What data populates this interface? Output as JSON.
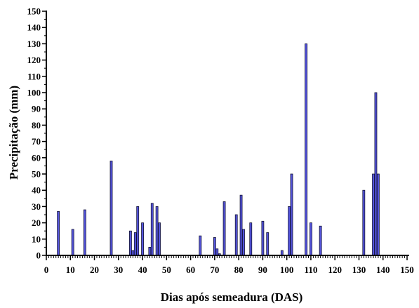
{
  "chart_data": {
    "type": "bar",
    "title": "",
    "xlabel": "Dias após semeadura (DAS)",
    "ylabel": "Precipitação (mm)",
    "xlim": [
      0,
      150
    ],
    "ylim": [
      0,
      150
    ],
    "x_ticks": [
      "0",
      "10",
      "20",
      "30",
      "40",
      "50",
      "60",
      "70",
      "80",
      "90",
      "100",
      "110",
      "120",
      "130",
      "140",
      "150"
    ],
    "y_ticks": [
      "0",
      "10",
      "20",
      "30",
      "40",
      "50",
      "60",
      "70",
      "80",
      "90",
      "100",
      "110",
      "120",
      "130",
      "140",
      "150"
    ],
    "grid": false,
    "bar_color": "#5555dd",
    "bar_edge_color": "#111133",
    "points": [
      {
        "x": 5,
        "y": 27
      },
      {
        "x": 11,
        "y": 16
      },
      {
        "x": 16,
        "y": 28
      },
      {
        "x": 27,
        "y": 58
      },
      {
        "x": 35,
        "y": 15
      },
      {
        "x": 36,
        "y": 3
      },
      {
        "x": 37,
        "y": 14
      },
      {
        "x": 38,
        "y": 30
      },
      {
        "x": 40,
        "y": 20
      },
      {
        "x": 43,
        "y": 5
      },
      {
        "x": 44,
        "y": 32
      },
      {
        "x": 46,
        "y": 30
      },
      {
        "x": 47,
        "y": 20
      },
      {
        "x": 64,
        "y": 12
      },
      {
        "x": 70,
        "y": 11
      },
      {
        "x": 71,
        "y": 4
      },
      {
        "x": 72,
        "y": 1
      },
      {
        "x": 74,
        "y": 33
      },
      {
        "x": 79,
        "y": 25
      },
      {
        "x": 81,
        "y": 37
      },
      {
        "x": 82,
        "y": 16
      },
      {
        "x": 85,
        "y": 20
      },
      {
        "x": 90,
        "y": 21
      },
      {
        "x": 92,
        "y": 14
      },
      {
        "x": 98,
        "y": 3
      },
      {
        "x": 101,
        "y": 30
      },
      {
        "x": 102,
        "y": 50
      },
      {
        "x": 108,
        "y": 130
      },
      {
        "x": 110,
        "y": 20
      },
      {
        "x": 114,
        "y": 18
      },
      {
        "x": 132,
        "y": 40
      },
      {
        "x": 136,
        "y": 50
      },
      {
        "x": 137,
        "y": 100
      },
      {
        "x": 138,
        "y": 50
      }
    ]
  }
}
